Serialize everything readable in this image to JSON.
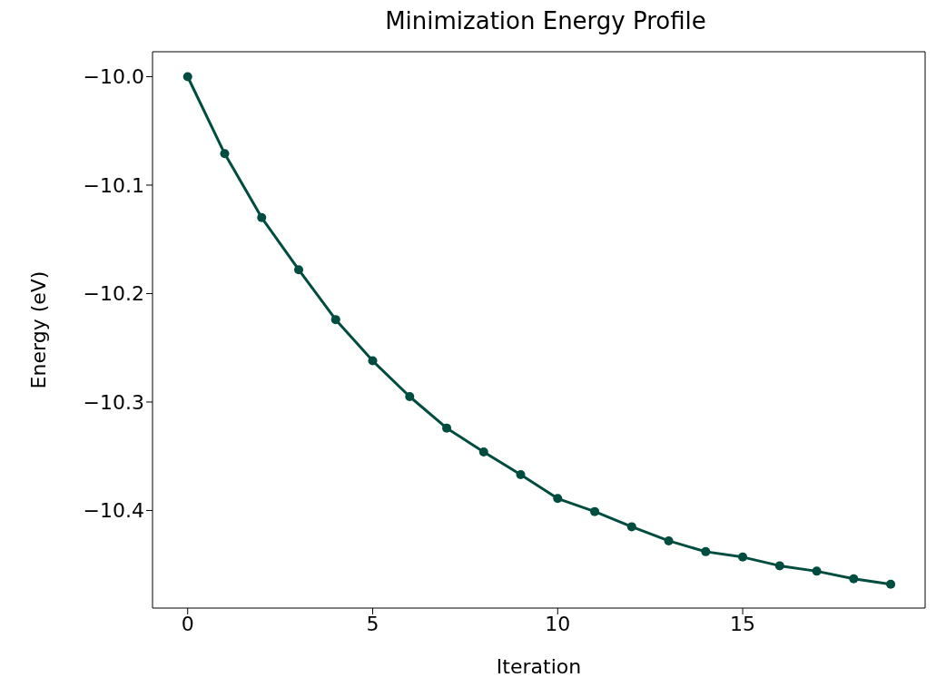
{
  "chart_data": {
    "type": "line",
    "title": "Minimization Energy Profile",
    "xlabel": "Iteration",
    "ylabel": "Energy (eV)",
    "x": [
      0,
      1,
      2,
      3,
      4,
      5,
      6,
      7,
      8,
      9,
      10,
      11,
      12,
      13,
      14,
      15,
      16,
      17,
      18,
      19
    ],
    "series": [
      {
        "color": "#004d40",
        "values": [
          -10.0,
          -10.071,
          -10.13,
          -10.178,
          -10.224,
          -10.262,
          -10.295,
          -10.324,
          -10.346,
          -10.367,
          -10.389,
          -10.401,
          -10.415,
          -10.428,
          -10.438,
          -10.443,
          -10.451,
          -10.456,
          -10.463,
          -10.468
        ]
      }
    ],
    "xlim": [
      -0.95,
      19.93
    ],
    "xticks": [
      0,
      5,
      10,
      15
    ],
    "ylim": [
      -10.49,
      -9.977
    ],
    "yticks": [
      {
        "value": -10.0,
        "label": "−10.0"
      },
      {
        "value": -10.1,
        "label": "−10.1"
      },
      {
        "value": -10.2,
        "label": "−10.2"
      },
      {
        "value": -10.3,
        "label": "−10.3"
      },
      {
        "value": -10.4,
        "label": "−10.4"
      }
    ],
    "grid": false,
    "marker": "circle",
    "line_style": "solid"
  }
}
